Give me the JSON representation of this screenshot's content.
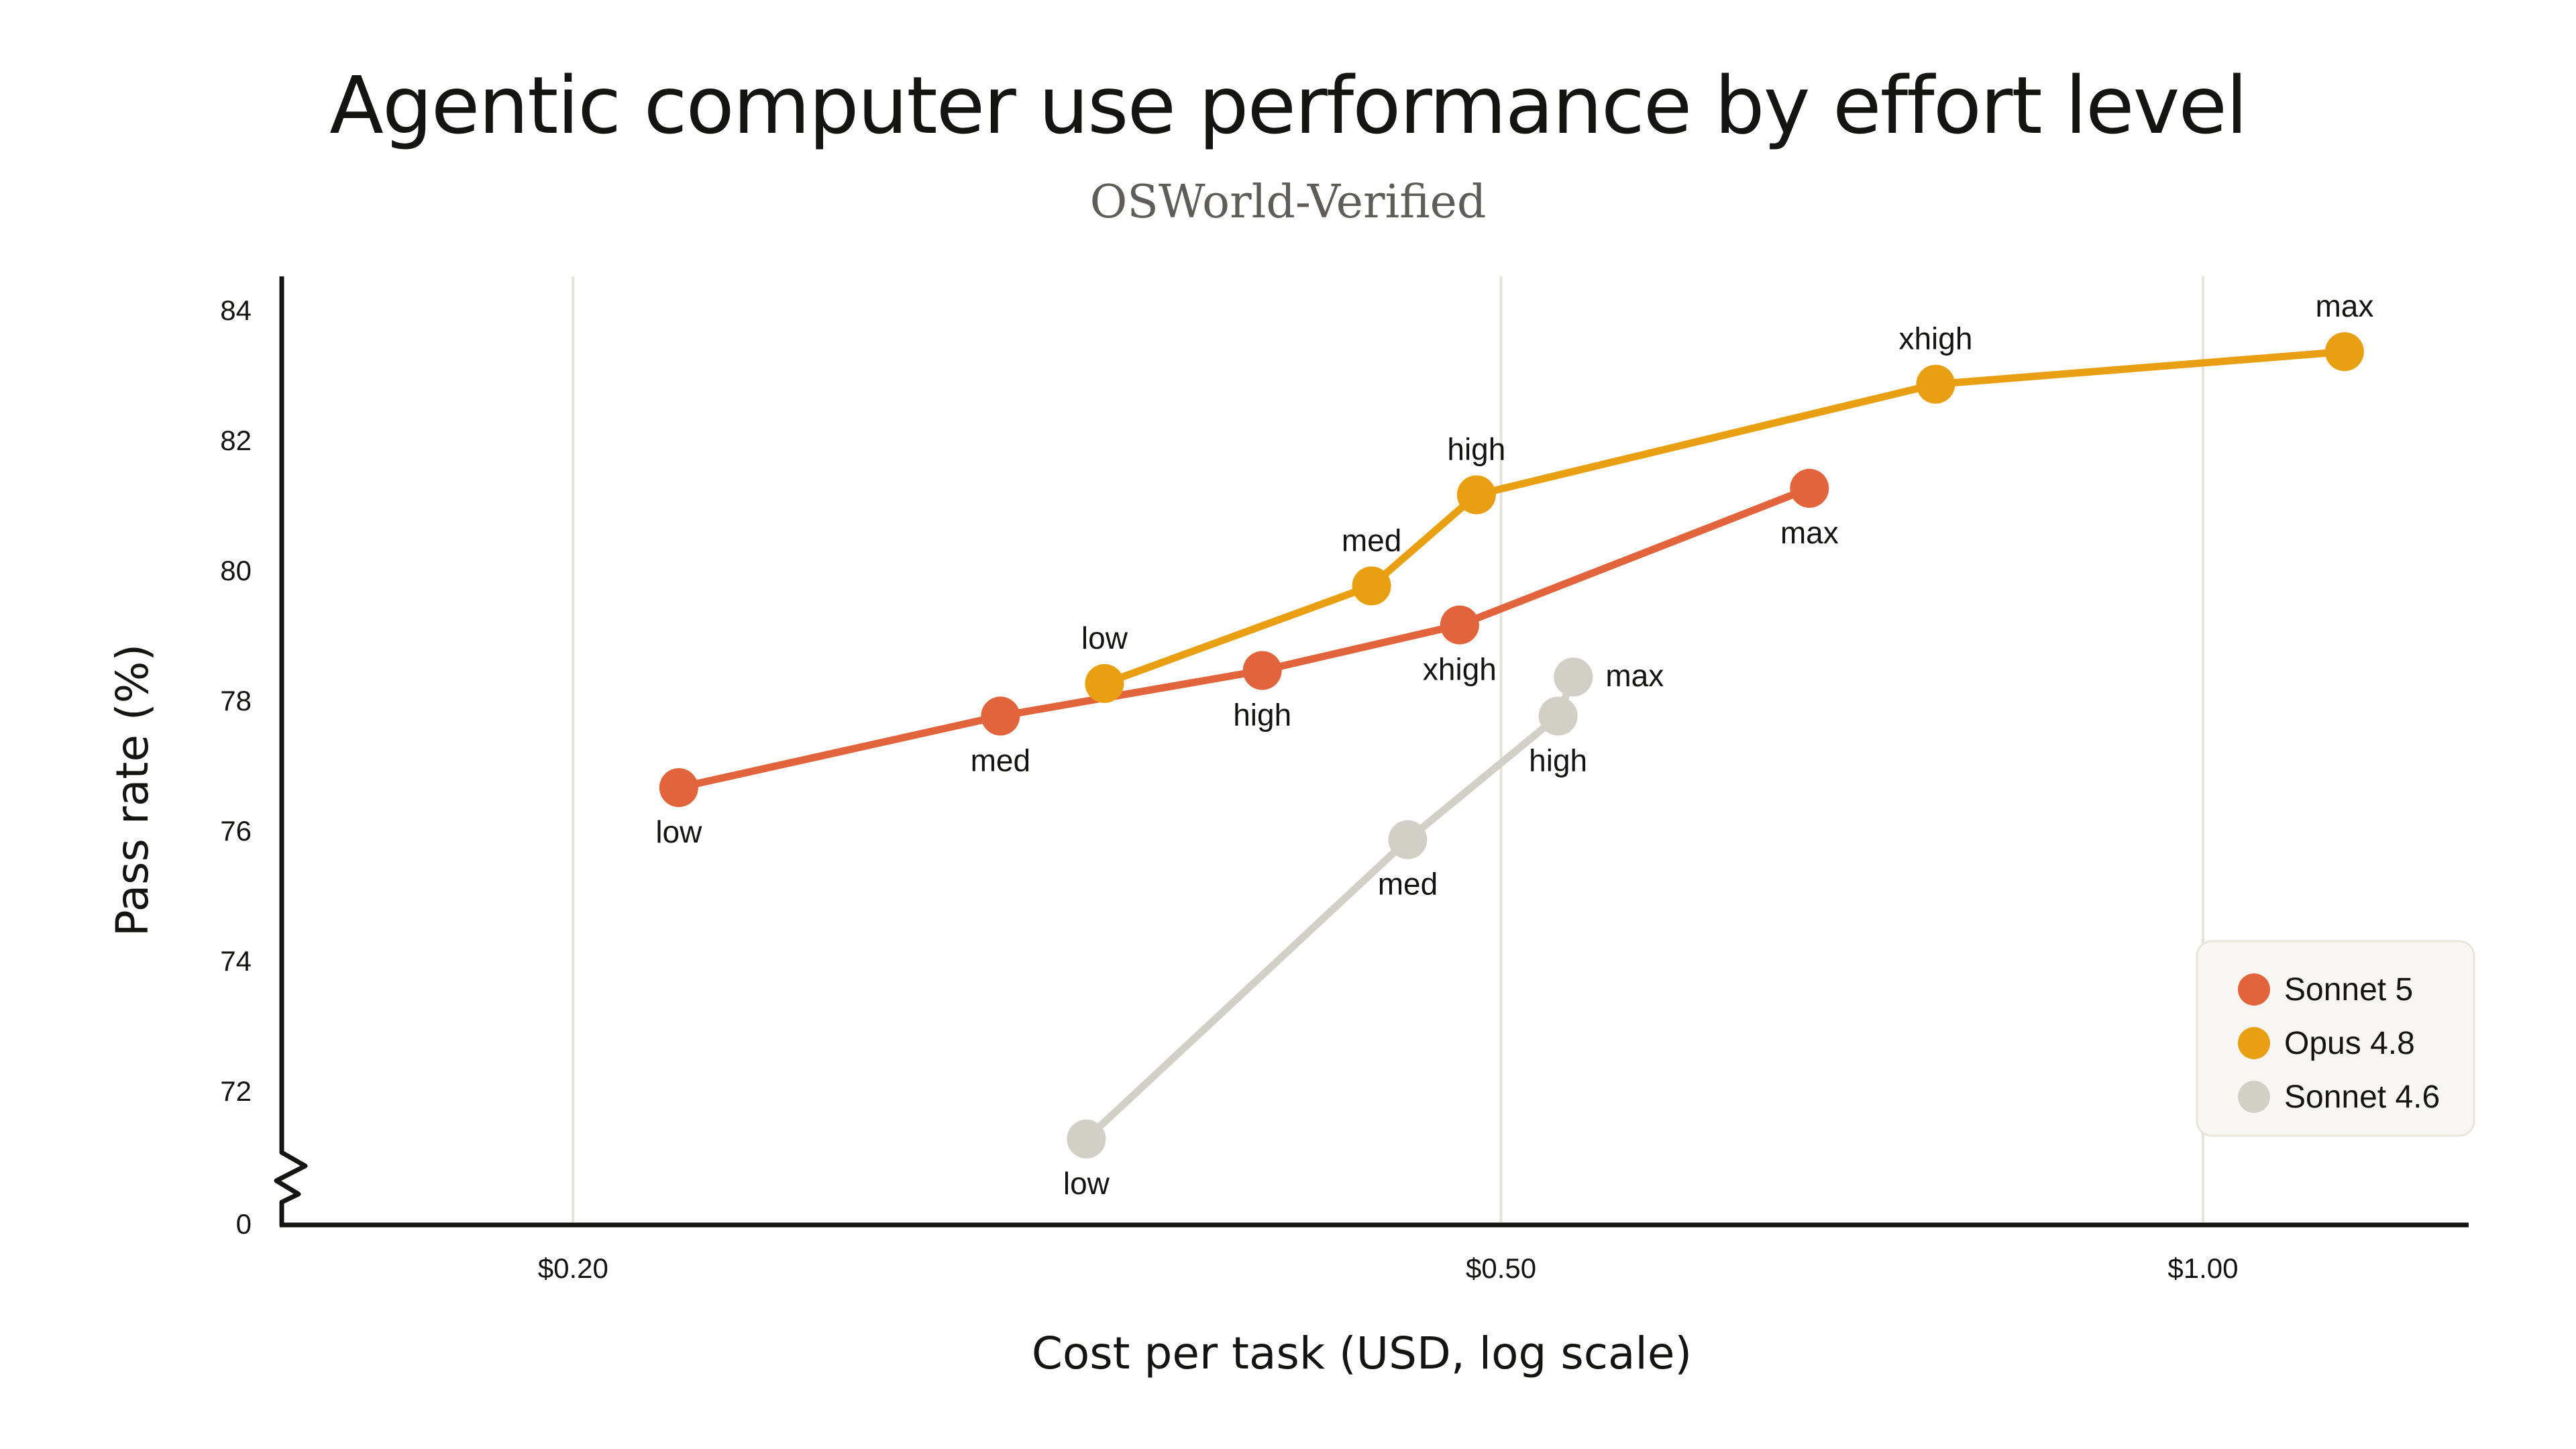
{
  "chart_data": {
    "type": "line",
    "title": "Agentic computer use performance by effort level",
    "subtitle": "OSWorld-Verified",
    "xlabel": "Cost per task (USD, log scale)",
    "ylabel": "Pass rate (%)",
    "x_scale": "log",
    "xlim": [
      0.15,
      1.3
    ],
    "ylim": [
      70.8,
      84.6
    ],
    "x_ticks": [
      {
        "value": 0.2,
        "label": "$0.20"
      },
      {
        "value": 0.5,
        "label": "$0.50"
      },
      {
        "value": 1.0,
        "label": "$1.00"
      }
    ],
    "y_ticks": [
      72,
      74,
      76,
      78,
      80,
      82,
      84
    ],
    "y_break_label": "0",
    "grid": "vertical",
    "legend": "bottom-right",
    "series": [
      {
        "name": "Sonnet 5",
        "color": "#E1643C",
        "points": [
          {
            "label": "low",
            "x": 0.222,
            "y": 76.7
          },
          {
            "label": "med",
            "x": 0.305,
            "y": 77.8
          },
          {
            "label": "high",
            "x": 0.395,
            "y": 78.5
          },
          {
            "label": "xhigh",
            "x": 0.48,
            "y": 79.2
          },
          {
            "label": "max",
            "x": 0.678,
            "y": 81.3
          }
        ]
      },
      {
        "name": "Opus 4.8",
        "color": "#E8A012",
        "points": [
          {
            "label": "low",
            "x": 0.338,
            "y": 78.3
          },
          {
            "label": "med",
            "x": 0.44,
            "y": 79.8
          },
          {
            "label": "high",
            "x": 0.488,
            "y": 81.2
          },
          {
            "label": "xhigh",
            "x": 0.768,
            "y": 82.9
          },
          {
            "label": "max",
            "x": 1.15,
            "y": 83.4
          }
        ]
      },
      {
        "name": "Sonnet 4.6",
        "color": "#D1CFC6",
        "points": [
          {
            "label": "low",
            "x": 0.332,
            "y": 71.3
          },
          {
            "label": "med",
            "x": 0.456,
            "y": 75.9
          },
          {
            "label": "high",
            "x": 0.529,
            "y": 77.8
          },
          {
            "label": "max",
            "x": 0.537,
            "y": 78.4
          }
        ]
      }
    ]
  }
}
